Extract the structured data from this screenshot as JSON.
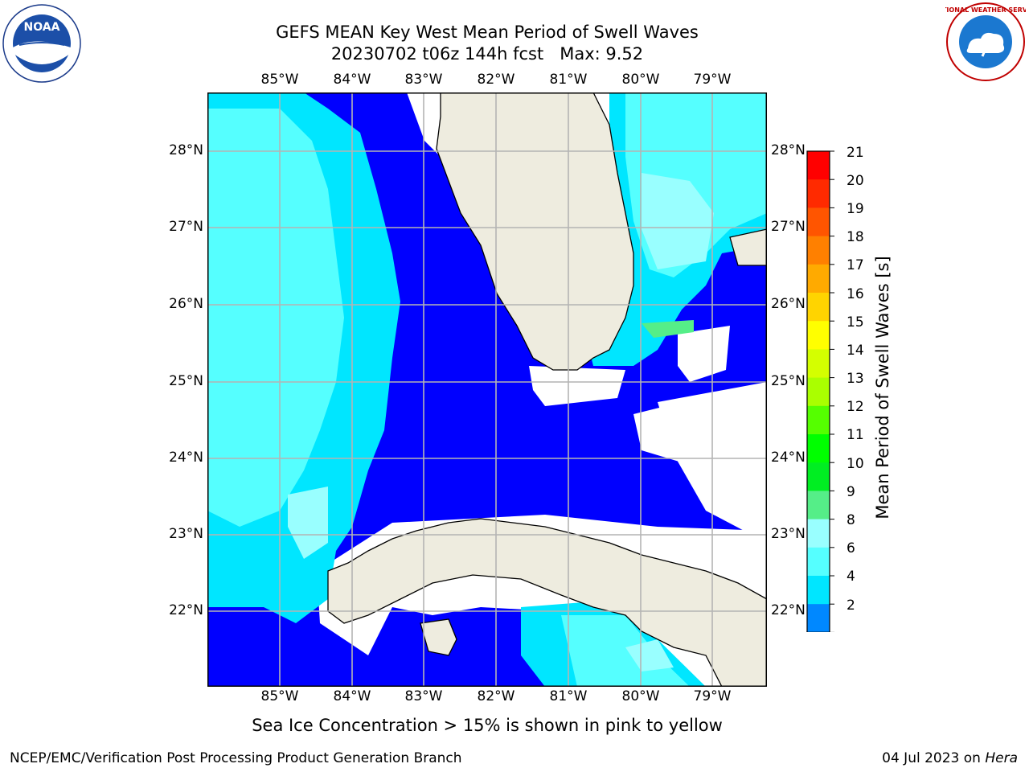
{
  "title": {
    "line1": "GEFS MEAN Key West Mean Period of Swell Waves",
    "line2": "20230702 t06z 144h fcst   Max: 9.52"
  },
  "map": {
    "lon_labels": [
      "85°W",
      "84°W",
      "83°W",
      "82°W",
      "81°W",
      "80°W",
      "79°W"
    ],
    "lat_labels": [
      "28°N",
      "27°N",
      "26°N",
      "25°N",
      "24°N",
      "23°N",
      "22°N"
    ],
    "colors": {
      "ocean_white": "#ffffff",
      "land": "#eeecdf",
      "grid": "#b4b4b4"
    }
  },
  "colorbar": {
    "label": "Mean Period of Swell Waves [s]",
    "ticks": [
      "21",
      "20",
      "19",
      "18",
      "17",
      "16",
      "15",
      "14",
      "13",
      "12",
      "11",
      "10",
      "9",
      "8",
      "6",
      "4",
      "2"
    ],
    "bins": [
      {
        "range": "20-21",
        "color": "#ff0000"
      },
      {
        "range": "19-20",
        "color": "#ff2a00"
      },
      {
        "range": "18-19",
        "color": "#ff5500"
      },
      {
        "range": "17-18",
        "color": "#ff8000"
      },
      {
        "range": "16-17",
        "color": "#ffaa00"
      },
      {
        "range": "15-16",
        "color": "#ffd400"
      },
      {
        "range": "14-15",
        "color": "#ffff00"
      },
      {
        "range": "13-14",
        "color": "#d4ff00"
      },
      {
        "range": "12-13",
        "color": "#aaff00"
      },
      {
        "range": "11-12",
        "color": "#55ff00"
      },
      {
        "range": "10-11",
        "color": "#00ff00"
      },
      {
        "range": "9-10",
        "color": "#00ee22"
      },
      {
        "range": "8-9",
        "color": "#55ee88"
      },
      {
        "range": "6-8",
        "color": "#99ffff"
      },
      {
        "range": "4-6",
        "color": "#55ffff"
      },
      {
        "range": "2-4",
        "color": "#00e6ff"
      },
      {
        "range": "<2",
        "color": "#0088ff"
      }
    ],
    "extend_color": "#0000ff"
  },
  "footnote": "Sea Ice Concentration > 15% is shown in pink to yellow",
  "credit": "NCEP/EMC/Verification Post Processing Product Generation Branch",
  "date": {
    "text": "04 Jul 2023 on ",
    "host": "Hera"
  },
  "logos": {
    "left": "NOAA",
    "right": "NATIONAL WEATHER SERVICE"
  }
}
